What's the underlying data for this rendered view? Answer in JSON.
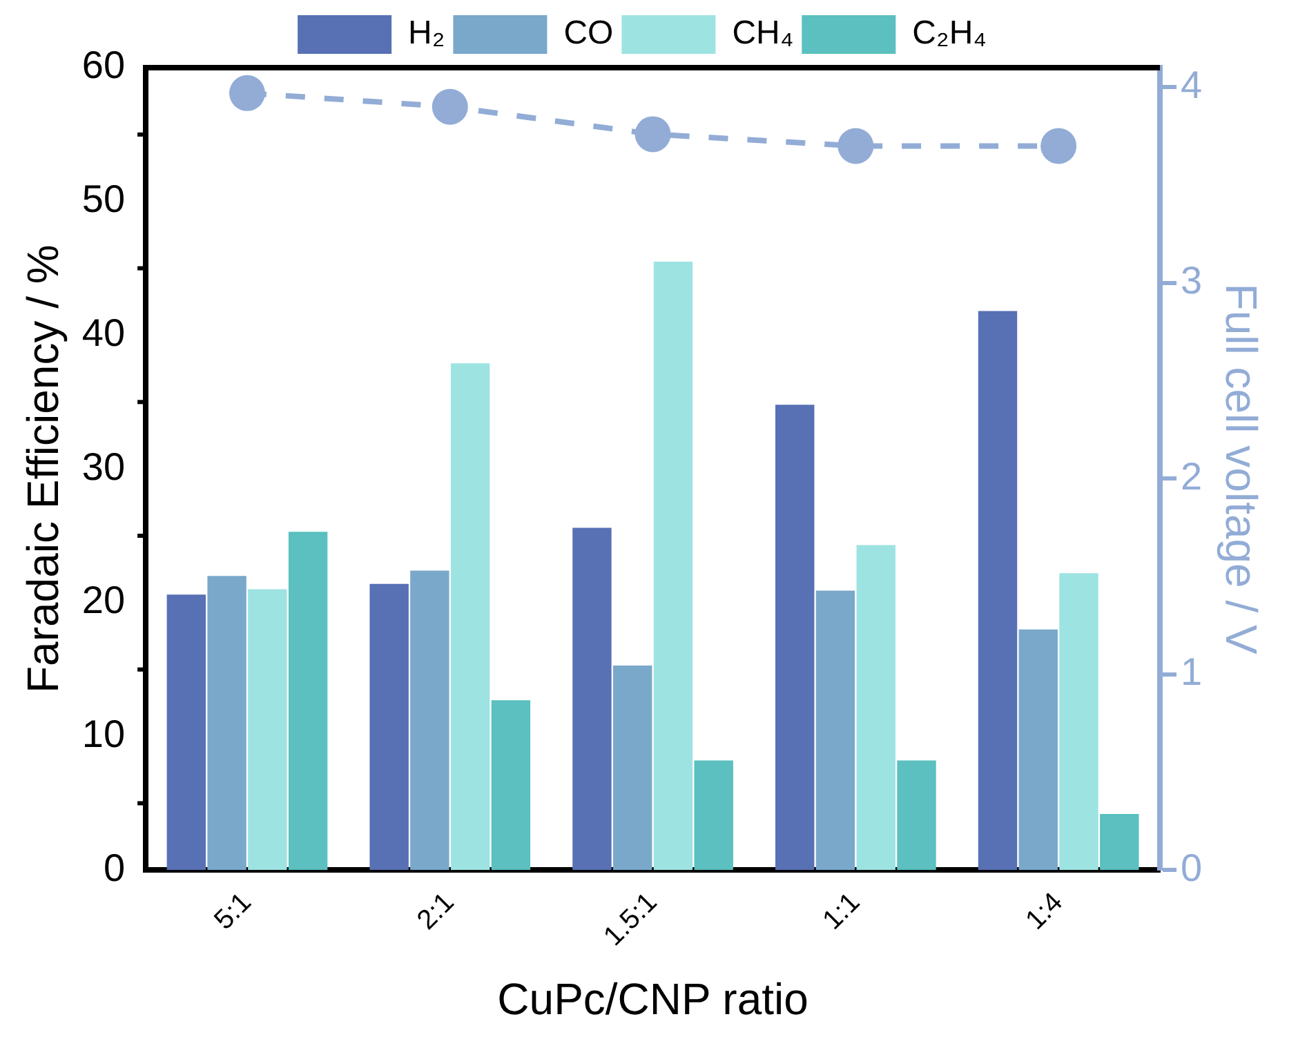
{
  "chart_data": {
    "type": "bar",
    "xlabel": "CuPc/CNP ratio",
    "ylabel": "Faradaic Efficiency / %",
    "y2label": "Full cell voltage / V",
    "categories": [
      "5:1",
      "2:1",
      "1.5:1",
      "1:1",
      "1:4"
    ],
    "series": [
      {
        "name": "H₂",
        "color": "#5870b4",
        "values": [
          20.6,
          21.4,
          25.6,
          34.8,
          41.8
        ]
      },
      {
        "name": "CO",
        "color": "#79a8cb",
        "values": [
          22.0,
          22.4,
          15.3,
          20.9,
          18.0
        ]
      },
      {
        "name": "CH₄",
        "color": "#9de3e2",
        "values": [
          21.0,
          37.9,
          45.5,
          24.3,
          22.2
        ]
      },
      {
        "name": "C₂H₄",
        "color": "#5bc0bf",
        "values": [
          25.3,
          12.7,
          8.2,
          8.2,
          4.2
        ]
      },
      {
        "type": "line",
        "axis": "y2",
        "color": "#92acd6",
        "values": [
          3.97,
          3.9,
          3.76,
          3.7,
          3.7
        ],
        "marker": "circle",
        "line_style": "dashed"
      }
    ],
    "ylim": [
      0,
      60
    ],
    "yticks": [
      0,
      {
        "value": 5,
        "label": null
      },
      10,
      {
        "value": 15,
        "label": null
      },
      20,
      {
        "value": 25,
        "label": null
      },
      30,
      {
        "value": 35,
        "label": null
      },
      40,
      {
        "value": 45,
        "label": null
      },
      50,
      {
        "value": 55,
        "label": null
      },
      60
    ],
    "y2lim": [
      0,
      4.1
    ],
    "y2ticks": [
      0,
      1,
      2,
      3,
      4
    ],
    "grid": false,
    "legend": "top"
  }
}
